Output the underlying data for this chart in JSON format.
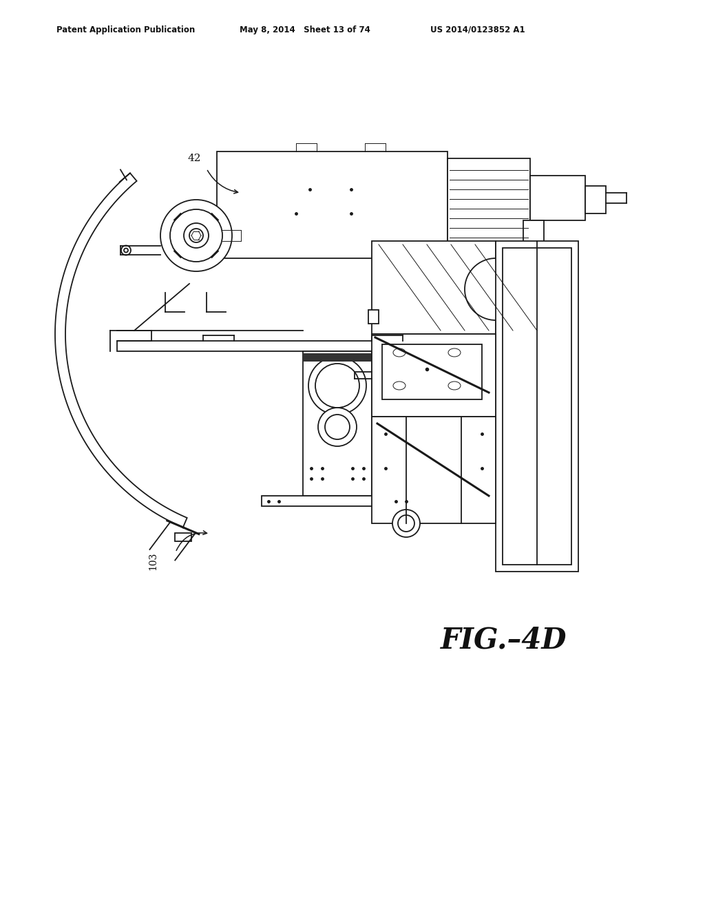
{
  "background_color": "#ffffff",
  "header_text1": "Patent Application Publication",
  "header_text2": "May 8, 2014   Sheet 13 of 74",
  "header_text3": "US 2014/0123852 A1",
  "fig_label": "FIG.–4D",
  "label_42": "42",
  "label_103": "103",
  "line_color": "#1a1a1a",
  "line_width": 1.3,
  "thin_line": 0.7,
  "thick_line": 2.2
}
